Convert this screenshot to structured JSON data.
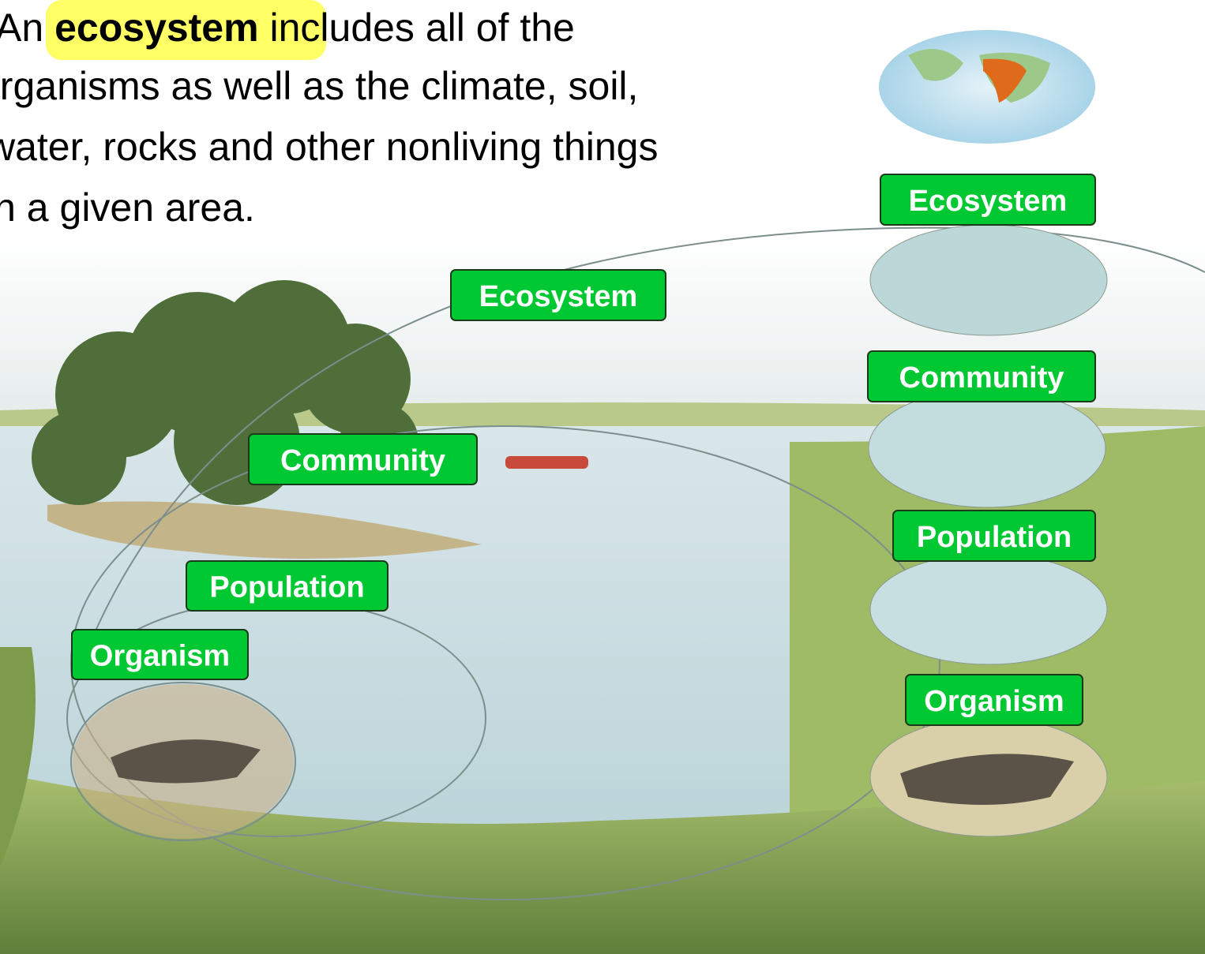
{
  "intro": {
    "lead": "An",
    "term": "ecosystem",
    "rest": "includes all of the",
    "lines": [
      "organisms as well as the climate, soil,",
      "water, rocks and other nonliving things",
      "in a given area."
    ]
  },
  "diagram": {
    "labels": [
      "Ecosystem",
      "Community",
      "Population",
      "Organism"
    ]
  },
  "sidebar": {
    "labels": [
      "Ecosystem",
      "Community",
      "Population",
      "Organism"
    ]
  }
}
